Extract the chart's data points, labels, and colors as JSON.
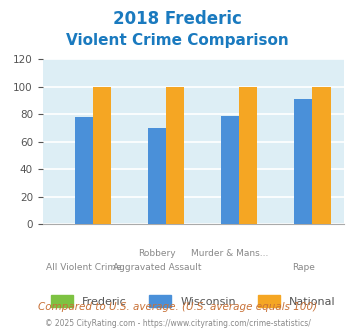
{
  "title_line1": "2018 Frederic",
  "title_line2": "Violent Crime Comparison",
  "title_color": "#1a7abf",
  "x_labels_row1": [
    "",
    "Robbery",
    "Murder & Mans...",
    ""
  ],
  "x_labels_row2": [
    "All Violent Crime",
    "Aggravated Assault",
    "",
    "Rape"
  ],
  "frederic": [
    0,
    0,
    0,
    0
  ],
  "wisconsin": [
    78,
    70,
    79,
    91
  ],
  "national": [
    100,
    100,
    100,
    100
  ],
  "bar_colors": {
    "frederic": "#7dc242",
    "wisconsin": "#4a90d9",
    "national": "#f5a623"
  },
  "ylim": [
    0,
    120
  ],
  "yticks": [
    0,
    20,
    40,
    60,
    80,
    100,
    120
  ],
  "plot_bg": "#ddeef5",
  "grid_color": "#ffffff",
  "footer_text": "Compared to U.S. average. (U.S. average equals 100)",
  "copyright_text": "© 2025 CityRating.com - https://www.cityrating.com/crime-statistics/",
  "footer_color": "#c87137",
  "copyright_color": "#888888",
  "bar_width": 0.25
}
